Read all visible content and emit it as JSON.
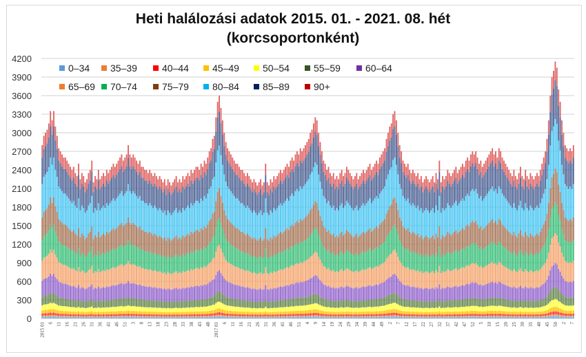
{
  "chart_data": {
    "type": "bar",
    "stacked": true,
    "title": "Heti halálozási adatok 2015. 01. - 2021. 08. hét",
    "subtitle": "(korcsoportonként)",
    "xlabel": "",
    "ylabel": "",
    "ylim": [
      0,
      4200
    ],
    "yticks": [
      0,
      300,
      600,
      900,
      1200,
      1500,
      1800,
      2100,
      2400,
      2700,
      3000,
      3300,
      3600,
      3900,
      4200
    ],
    "grid": true,
    "legend_position": "top-left",
    "x_tick_labels": [
      "2015 01",
      "6",
      "11",
      "16",
      "21",
      "26",
      "31",
      "36",
      "41",
      "46",
      "51",
      "3",
      "8",
      "13",
      "18",
      "23",
      "28",
      "33",
      "38",
      "43",
      "48",
      "2017 01",
      "6",
      "11",
      "16",
      "21",
      "26",
      "31",
      "36",
      "41",
      "46",
      "51",
      "4",
      "9",
      "14",
      "19",
      "24",
      "29",
      "34",
      "39",
      "44",
      "49",
      "2",
      "7",
      "12",
      "17",
      "22",
      "27",
      "32",
      "37",
      "42",
      "47",
      "52",
      "5",
      "10",
      "15",
      "20",
      "25",
      "30",
      "35",
      "40",
      "45",
      "50",
      "2",
      "7"
    ],
    "x_tick_every_weeks": 5,
    "weekly_totals": [
      2800,
      2950,
      3000,
      3050,
      3150,
      3350,
      3200,
      3350,
      3100,
      2950,
      2750,
      2700,
      2650,
      2600,
      2600,
      2550,
      2500,
      2450,
      2400,
      2450,
      2350,
      2300,
      2500,
      2250,
      2350,
      2300,
      2200,
      2250,
      2350,
      2400,
      2550,
      2200,
      2300,
      2250,
      2400,
      2250,
      2300,
      2350,
      2300,
      2400,
      2350,
      2400,
      2450,
      2500,
      2450,
      2500,
      2550,
      2600,
      2650,
      2550,
      2600,
      2650,
      2800,
      2650,
      2600,
      2650,
      2600,
      2550,
      2500,
      2550,
      2450,
      2450,
      2400,
      2400,
      2350,
      2400,
      2350,
      2300,
      2350,
      2300,
      2250,
      2300,
      2250,
      2200,
      2250,
      2150,
      2250,
      2200,
      2150,
      2200,
      2250,
      2300,
      2200,
      2250,
      2200,
      2300,
      2250,
      2300,
      2350,
      2300,
      2400,
      2350,
      2400,
      2450,
      2450,
      2400,
      2500,
      2450,
      2550,
      2500,
      2600,
      2700,
      2750,
      2900,
      2950,
      3250,
      3500,
      3600,
      3400,
      3200,
      3000,
      2850,
      2750,
      2700,
      2650,
      2600,
      2550,
      2500,
      2500,
      2450,
      2400,
      2400,
      2350,
      2300,
      2350,
      2300,
      2250,
      2200,
      2250,
      2200,
      2150,
      2200,
      2250,
      2150,
      2200,
      2500,
      2200,
      2150,
      2250,
      2200,
      2300,
      2250,
      2300,
      2350,
      2400,
      2350,
      2400,
      2450,
      2500,
      2450,
      2550,
      2600,
      2550,
      2650,
      2700,
      2650,
      2750,
      2700,
      2750,
      2800,
      2850,
      2900,
      3000,
      3050,
      3150,
      3250,
      3200,
      3000,
      2850,
      2700,
      2550,
      2500,
      2400,
      2450,
      2350,
      2300,
      2350,
      2250,
      2300,
      2250,
      2350,
      2400,
      2300,
      2350,
      2450,
      2400,
      2350,
      2300,
      2250,
      2300,
      2350,
      2250,
      2300,
      2350,
      2400,
      2350,
      2400,
      2450,
      2500,
      2400,
      2450,
      2500,
      2550,
      2500,
      2600,
      2650,
      2700,
      2750,
      2900,
      3000,
      3100,
      3150,
      3300,
      3350,
      3200,
      3000,
      2800,
      2700,
      2550,
      2500,
      2450,
      2500,
      2400,
      2350,
      2400,
      2350,
      2300,
      2350,
      2250,
      2300,
      2200,
      2250,
      2300,
      2250,
      2200,
      2250,
      2300,
      2200,
      2350,
      2250,
      2550,
      2200,
      2300,
      2250,
      2300,
      2400,
      2350,
      2300,
      2350,
      2400,
      2450,
      2350,
      2400,
      2450,
      2500,
      2450,
      2550,
      2600,
      2550,
      2650,
      2700,
      2650,
      2700,
      2600,
      2500,
      2550,
      2450,
      2500,
      2550,
      2600,
      2650,
      2700,
      2750,
      2650,
      2700,
      2600,
      2750,
      2700,
      2600,
      2550,
      2500,
      2450,
      2400,
      2350,
      2300,
      2400,
      2300,
      2250,
      2350,
      2450,
      2300,
      2250,
      2400,
      2300,
      2250,
      2350,
      2300,
      2250,
      2300,
      2350,
      2300,
      2400,
      2500,
      2600,
      2700,
      2900,
      3200,
      3600,
      3900,
      4000,
      4150,
      4050,
      3700,
      3500,
      3200,
      3000,
      2800,
      2750,
      2700,
      2750,
      2700,
      2800
    ],
    "series": [
      {
        "name": "0–34",
        "color": "#6FA8DC",
        "legend_color": "#5B9BD5",
        "typical_share": 0.01
      },
      {
        "name": "35–39",
        "color": "#F08C4A",
        "legend_color": "#ED7D31",
        "typical_share": 0.006
      },
      {
        "name": "40–44",
        "color": "#F4302A",
        "legend_color": "#FF0000",
        "typical_share": 0.012
      },
      {
        "name": "45–49",
        "color": "#FFC000",
        "legend_color": "#FFC000",
        "typical_share": 0.018
      },
      {
        "name": "50–54",
        "color": "#FFFF3C",
        "legend_color": "#FFFF00",
        "typical_share": 0.03
      },
      {
        "name": "55–59",
        "color": "#66884F",
        "legend_color": "#375623",
        "typical_share": 0.048
      },
      {
        "name": "60–64",
        "color": "#9466CC",
        "legend_color": "#7030A0",
        "typical_share": 0.092
      },
      {
        "name": "65–69",
        "color": "#F4A670",
        "legend_color": "#ED7D31",
        "typical_share": 0.116
      },
      {
        "name": "70–74",
        "color": "#3CBF7A",
        "legend_color": "#00B050",
        "typical_share": 0.12
      },
      {
        "name": "75–79",
        "color": "#A8785A",
        "legend_color": "#843C0C",
        "typical_share": 0.132
      },
      {
        "name": "80–84",
        "color": "#4CC6F2",
        "legend_color": "#00B0F0",
        "typical_share": 0.192
      },
      {
        "name": "85–89",
        "color": "#4F6496",
        "legend_color": "#002060",
        "typical_share": 0.152
      },
      {
        "name": "90+",
        "color": "#E06262",
        "legend_color": "#C00000",
        "typical_share": 0.072
      }
    ]
  }
}
